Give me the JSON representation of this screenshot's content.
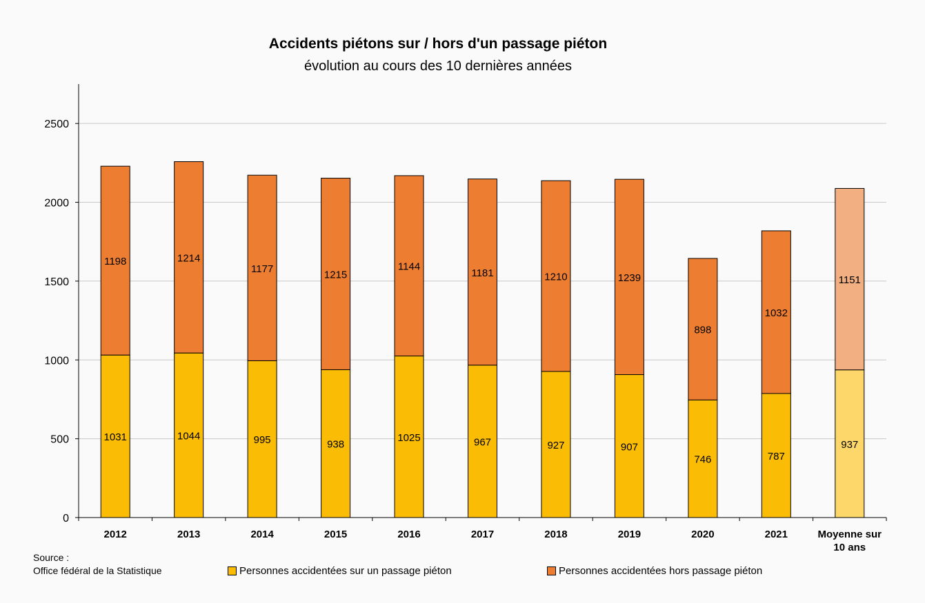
{
  "chart_data": {
    "type": "bar",
    "stacked": true,
    "title": "Accidents piétons sur / hors d'un passage piéton",
    "subtitle": "évolution au cours des 10 dernières années",
    "categories": [
      "2012",
      "2013",
      "2014",
      "2015",
      "2016",
      "2017",
      "2018",
      "2019",
      "2020",
      "2021",
      "Moyenne sur 10 ans"
    ],
    "category_lines": [
      [
        "2012"
      ],
      [
        "2013"
      ],
      [
        "2014"
      ],
      [
        "2015"
      ],
      [
        "2016"
      ],
      [
        "2017"
      ],
      [
        "2018"
      ],
      [
        "2019"
      ],
      [
        "2020"
      ],
      [
        "2021"
      ],
      [
        "Moyenne sur",
        "10 ans"
      ]
    ],
    "series": [
      {
        "name": "Personnes accidentées sur un passage piéton",
        "values": [
          1031,
          1044,
          995,
          938,
          1025,
          967,
          927,
          907,
          746,
          787,
          937
        ],
        "color": "#fbbc05",
        "average_color": "#fdd76a"
      },
      {
        "name": "Personnes accidentées hors passage piéton",
        "values": [
          1198,
          1214,
          1177,
          1215,
          1144,
          1181,
          1210,
          1239,
          898,
          1032,
          1151
        ],
        "color": "#ed7d31",
        "average_color": "#f2af82"
      }
    ],
    "yticks": [
      0,
      500,
      1000,
      1500,
      2000,
      2500
    ],
    "ylim": [
      0,
      2750
    ],
    "grid": true,
    "legend_position": "bottom"
  },
  "source_lines": [
    "Source :",
    "Office fédéral de la Statistique"
  ]
}
